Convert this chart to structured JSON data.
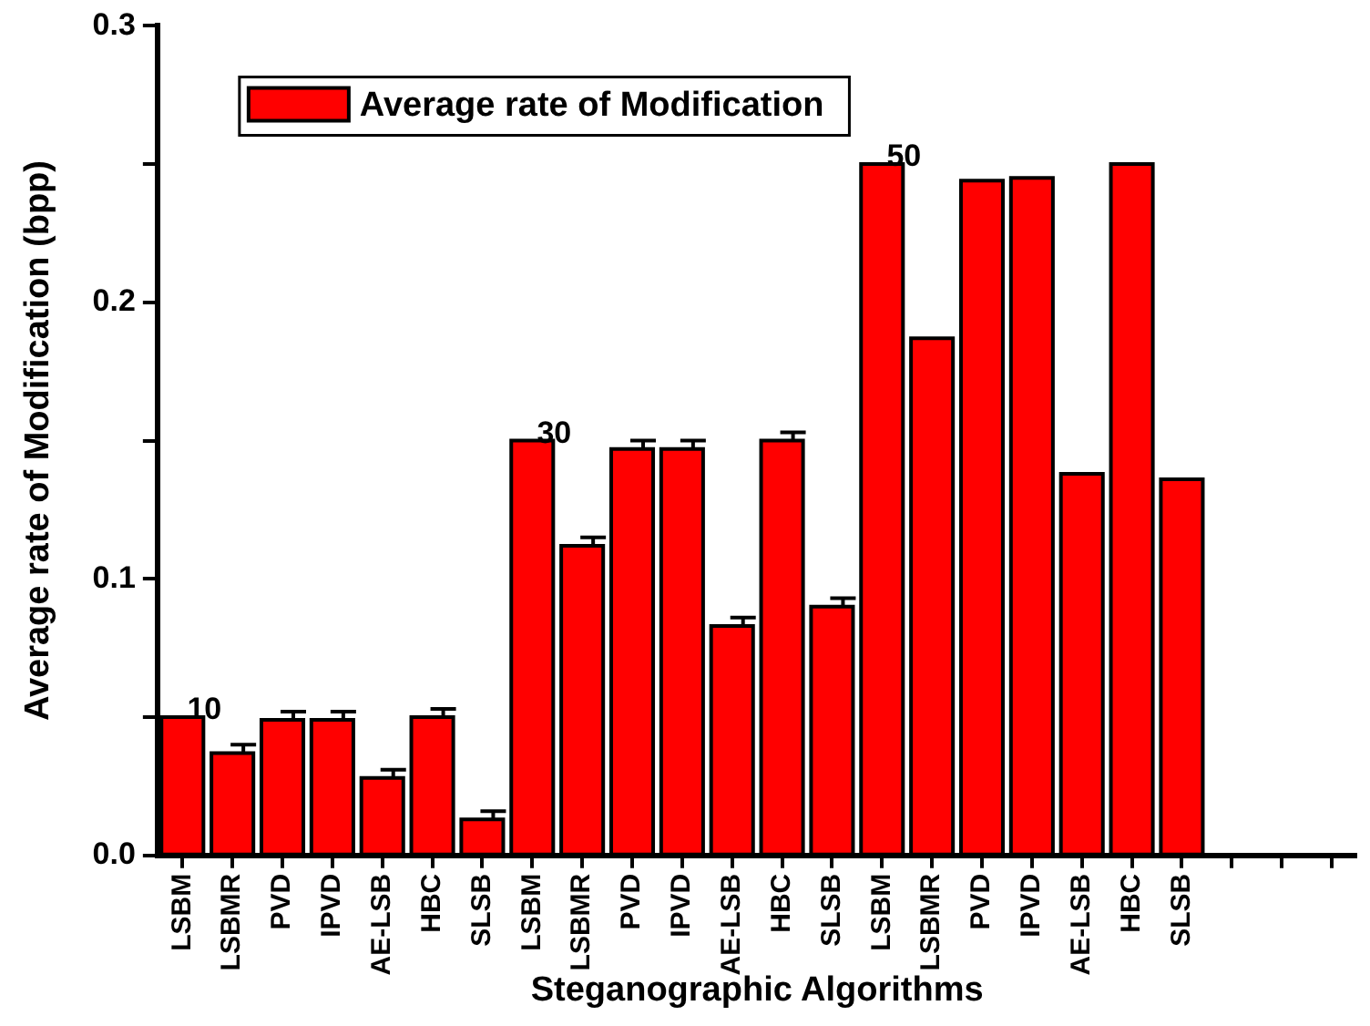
{
  "chart_data": {
    "type": "bar",
    "xlabel": "Steganographic Algorithms",
    "ylabel": "Average rate of Modification (bpp)",
    "categories": [
      "LSBM",
      "LSBMR",
      "PVD",
      "IPVD",
      "AE-LSB",
      "HBC",
      "SLSB",
      "LSBM",
      "LSBMR",
      "PVD",
      "IPVD",
      "AE-LSB",
      "HBC",
      "SLSB",
      "LSBM",
      "LSBMR",
      "PVD",
      "IPVD",
      "AE-LSB",
      "HBC",
      "SLSB",
      null,
      null,
      null
    ],
    "series": [
      {
        "name": "Average rate of Modification",
        "color": "#ff0000",
        "values": [
          0.05,
          0.037,
          0.049,
          0.049,
          0.028,
          0.05,
          0.013,
          0.15,
          0.112,
          0.147,
          0.147,
          0.083,
          0.15,
          0.09,
          0.25,
          0.187,
          0.244,
          0.245,
          0.138,
          0.25,
          0.136,
          null,
          null,
          null
        ],
        "errors": [
          null,
          0.003,
          0.003,
          0.003,
          0.003,
          0.003,
          0.003,
          null,
          0.003,
          0.003,
          0.003,
          0.003,
          0.003,
          0.003,
          null,
          null,
          null,
          null,
          null,
          null,
          null,
          null,
          null,
          null
        ]
      }
    ],
    "annotations": [
      "10",
      "30",
      "50"
    ],
    "ylim": [
      0,
      0.3
    ],
    "yticks": [
      {
        "value": 0,
        "label": "0.0"
      },
      {
        "value": 0.05,
        "label": null
      },
      0.1,
      {
        "value": 0.15,
        "label": null
      },
      0.2,
      {
        "value": 0.25,
        "label": null
      },
      0.3
    ],
    "grid": false,
    "legend": "top left"
  }
}
